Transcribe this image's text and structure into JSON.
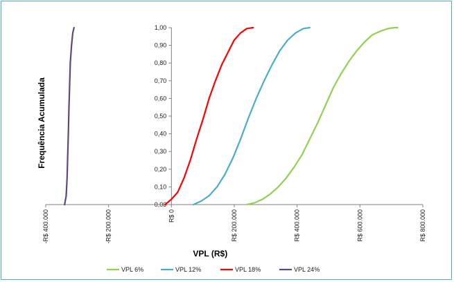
{
  "chart_data": {
    "type": "line",
    "title": "",
    "xlabel": "VPL (R$)",
    "ylabel": "Frequência Acumulada",
    "xlim": [
      -400000,
      800000
    ],
    "ylim": [
      0,
      1
    ],
    "x_ticks": [
      {
        "value": -400000,
        "label": "-R$ 400.000"
      },
      {
        "value": -200000,
        "label": "-R$ 200.000"
      },
      {
        "value": 0,
        "label": "R$ 0"
      },
      {
        "value": 200000,
        "label": "R$ 200.000"
      },
      {
        "value": 400000,
        "label": "R$ 400.000"
      },
      {
        "value": 600000,
        "label": "R$ 600.000"
      },
      {
        "value": 800000,
        "label": "R$ 800.000"
      }
    ],
    "y_ticks": [
      {
        "value": 0,
        "label": "0,00"
      },
      {
        "value": 0.1,
        "label": "0,10"
      },
      {
        "value": 0.2,
        "label": "0,20"
      },
      {
        "value": 0.3,
        "label": "0,30"
      },
      {
        "value": 0.4,
        "label": "0,40"
      },
      {
        "value": 0.5,
        "label": "0,50"
      },
      {
        "value": 0.6,
        "label": "0,60"
      },
      {
        "value": 0.7,
        "label": "0,70"
      },
      {
        "value": 0.8,
        "label": "0,80"
      },
      {
        "value": 0.9,
        "label": "0,90"
      },
      {
        "value": 1.0,
        "label": "1,00"
      }
    ],
    "grid": false,
    "legend_position": "bottom",
    "series": [
      {
        "name": "VPL 6%",
        "color": "#92d050",
        "x": [
          240000,
          265000,
          290000,
          315000,
          340000,
          365000,
          390000,
          415000,
          440000,
          465000,
          490000,
          515000,
          540000,
          565000,
          590000,
          615000,
          640000,
          665000,
          690000,
          710000,
          720000
        ],
        "y": [
          0.0,
          0.01,
          0.03,
          0.06,
          0.1,
          0.15,
          0.21,
          0.28,
          0.37,
          0.46,
          0.56,
          0.66,
          0.74,
          0.81,
          0.87,
          0.92,
          0.96,
          0.98,
          0.995,
          1.0,
          1.0
        ]
      },
      {
        "name": "VPL 12%",
        "color": "#4bacc6",
        "x": [
          70000,
          95000,
          120000,
          145000,
          170000,
          195000,
          220000,
          245000,
          270000,
          295000,
          320000,
          345000,
          370000,
          395000,
          420000,
          440000
        ],
        "y": [
          0.0,
          0.02,
          0.05,
          0.1,
          0.17,
          0.26,
          0.37,
          0.49,
          0.6,
          0.7,
          0.79,
          0.87,
          0.93,
          0.97,
          0.995,
          1.0
        ]
      },
      {
        "name": "VPL 18%",
        "color": "#ff0000",
        "x": [
          -20000,
          0,
          20000,
          40000,
          60000,
          80000,
          100000,
          120000,
          140000,
          160000,
          180000,
          200000,
          220000,
          240000,
          260000
        ],
        "y": [
          0.0,
          0.03,
          0.07,
          0.15,
          0.25,
          0.37,
          0.48,
          0.6,
          0.7,
          0.79,
          0.86,
          0.93,
          0.97,
          0.995,
          1.0
        ]
      },
      {
        "name": "VPL 24%",
        "color": "#5f497a",
        "x": [
          -340000,
          -335000,
          -332000,
          -330000,
          -328000,
          -326000,
          -324000,
          -322000,
          -318000,
          -314000,
          -310000
        ],
        "y": [
          0.0,
          0.05,
          0.15,
          0.28,
          0.4,
          0.55,
          0.68,
          0.8,
          0.9,
          0.97,
          1.0
        ]
      }
    ]
  }
}
